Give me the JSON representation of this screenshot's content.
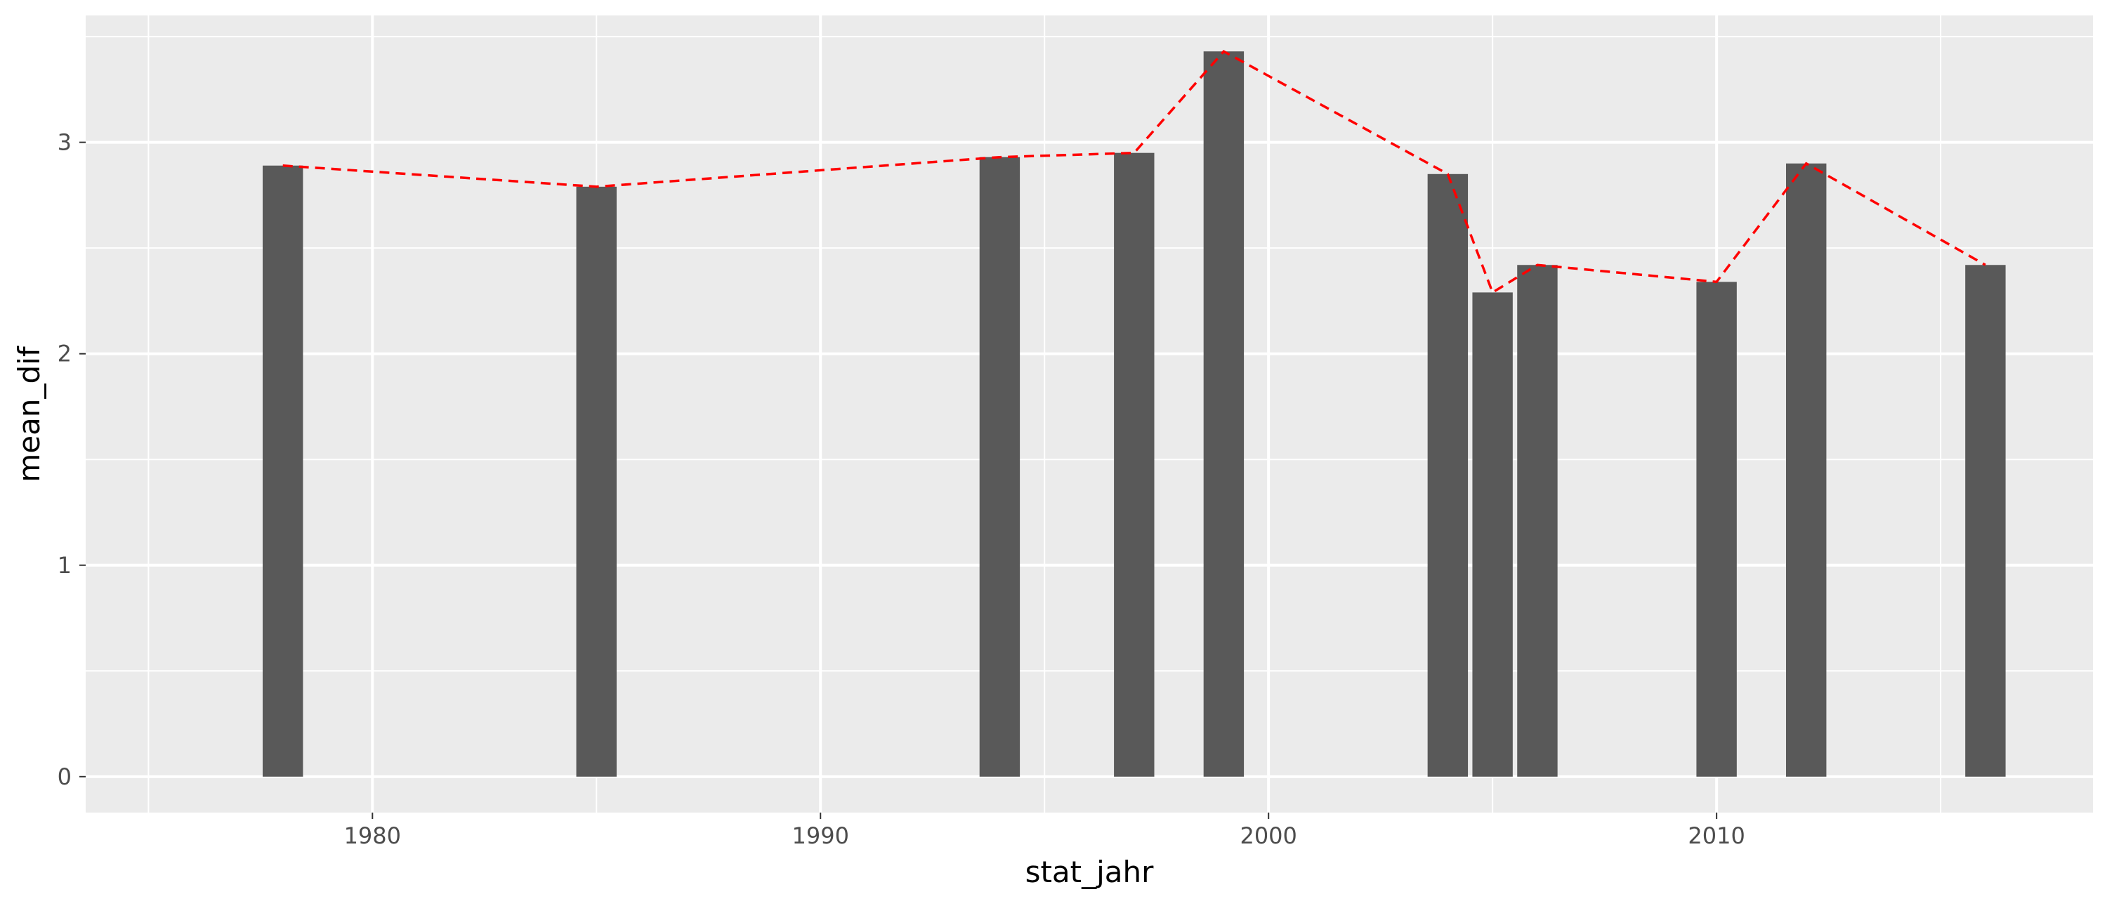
{
  "chart_data": {
    "type": "bar",
    "xlabel": "stat_jahr",
    "ylabel": "mean_dif",
    "x": [
      1978,
      1985,
      1994,
      1997,
      1999,
      2004,
      2005,
      2006,
      2010,
      2012,
      2016
    ],
    "values": [
      2.89,
      2.79,
      2.93,
      2.95,
      3.43,
      2.85,
      2.29,
      2.42,
      2.34,
      2.9,
      2.42
    ],
    "overlay_line": {
      "style": "dashed",
      "color": "#ff0000",
      "values": [
        2.89,
        2.79,
        2.93,
        2.95,
        3.43,
        2.85,
        2.29,
        2.42,
        2.34,
        2.9,
        2.42
      ]
    },
    "xlim": [
      1973.6,
      2018.4
    ],
    "ylim": [
      -0.17,
      3.6
    ],
    "x_ticks": [
      1980,
      1990,
      2000,
      2010
    ],
    "x_tick_labels": [
      "1980",
      "1990",
      "2000",
      "2010"
    ],
    "y_ticks": [
      0,
      1,
      2,
      3
    ],
    "y_tick_labels": [
      "0",
      "1",
      "2",
      "3"
    ],
    "grid": true,
    "colors": {
      "bar": "#595959",
      "panel": "#ebebeb",
      "grid": "#ffffff",
      "line": "#ff0000"
    }
  }
}
